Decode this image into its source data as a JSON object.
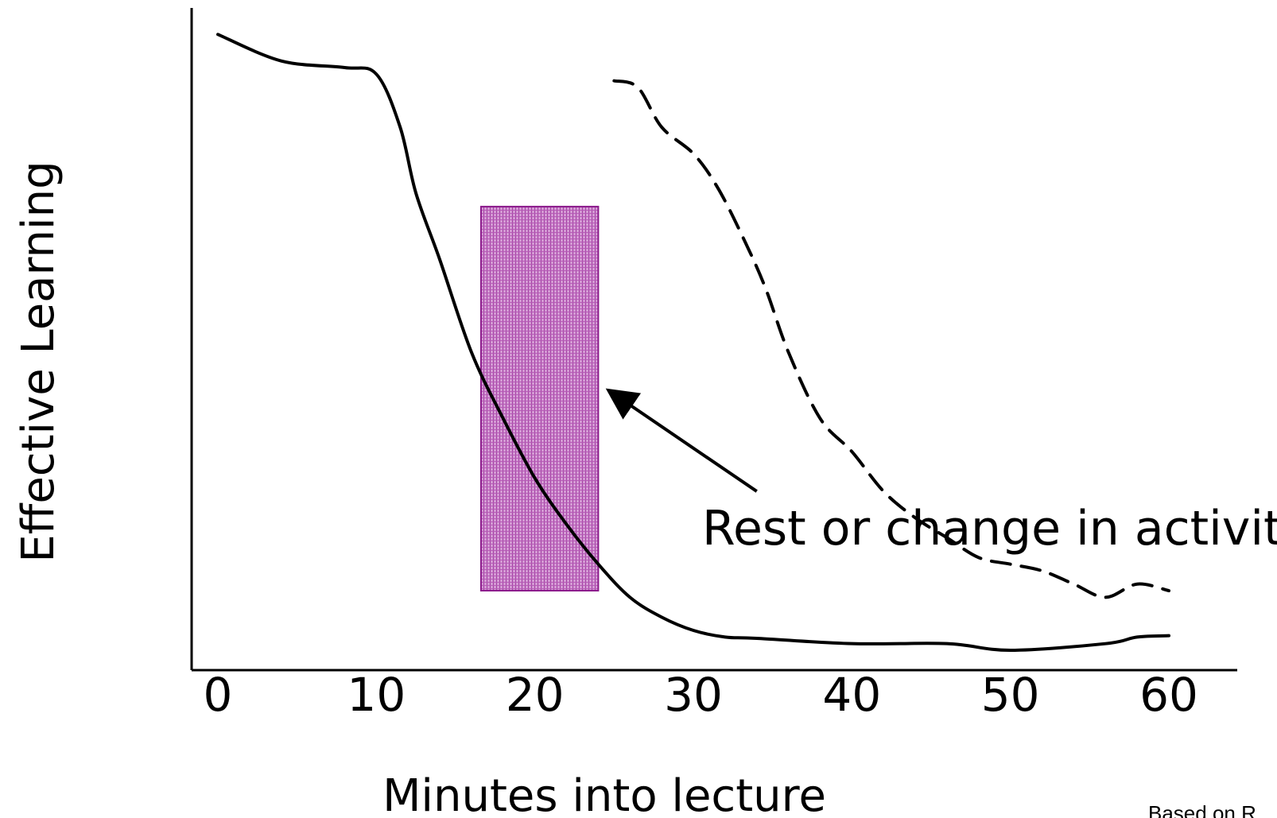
{
  "chart_data": {
    "type": "line",
    "xlabel": "Minutes into lecture",
    "ylabel": "Effective Learning",
    "xlim": [
      0,
      60
    ],
    "x_ticks": [
      "0",
      "10",
      "20",
      "30",
      "40",
      "50",
      "60"
    ],
    "y_ticks": [],
    "grid": false,
    "series": [
      {
        "style": "solid",
        "color": "#000000",
        "x": [
          0,
          4,
          8,
          10,
          11.5,
          12.5,
          14,
          16,
          18,
          20,
          22,
          24,
          26,
          28,
          30,
          32,
          34,
          40,
          46,
          50,
          56,
          58,
          60
        ],
        "y": [
          96,
          92,
          91,
          90,
          82,
          72,
          62,
          48,
          38,
          29,
          22,
          16,
          11,
          8,
          6,
          5,
          4.8,
          4,
          4,
          3,
          4,
          5,
          5.2
        ]
      },
      {
        "style": "dashed",
        "color": "#000000",
        "x": [
          25,
          26.5,
          28,
          30,
          31.5,
          33,
          34.5,
          36,
          38,
          40,
          42,
          44,
          46,
          48,
          50,
          52,
          54,
          56,
          58,
          60
        ],
        "y": [
          89,
          88,
          82,
          78,
          73,
          66,
          58,
          48,
          38,
          33,
          27,
          23,
          20,
          17,
          16,
          15,
          13,
          11,
          13,
          12
        ]
      }
    ],
    "highlight": {
      "x_start": 16.6,
      "x_end": 24,
      "y_low": 12,
      "y_high": 70,
      "color": "#b44db4",
      "border": "#8b1a8b"
    },
    "annotation": {
      "text": "Rest or change in activity",
      "arrow_from": [
        34,
        27
      ],
      "arrow_to": [
        24.8,
        42
      ]
    },
    "credit": "Based on R"
  }
}
